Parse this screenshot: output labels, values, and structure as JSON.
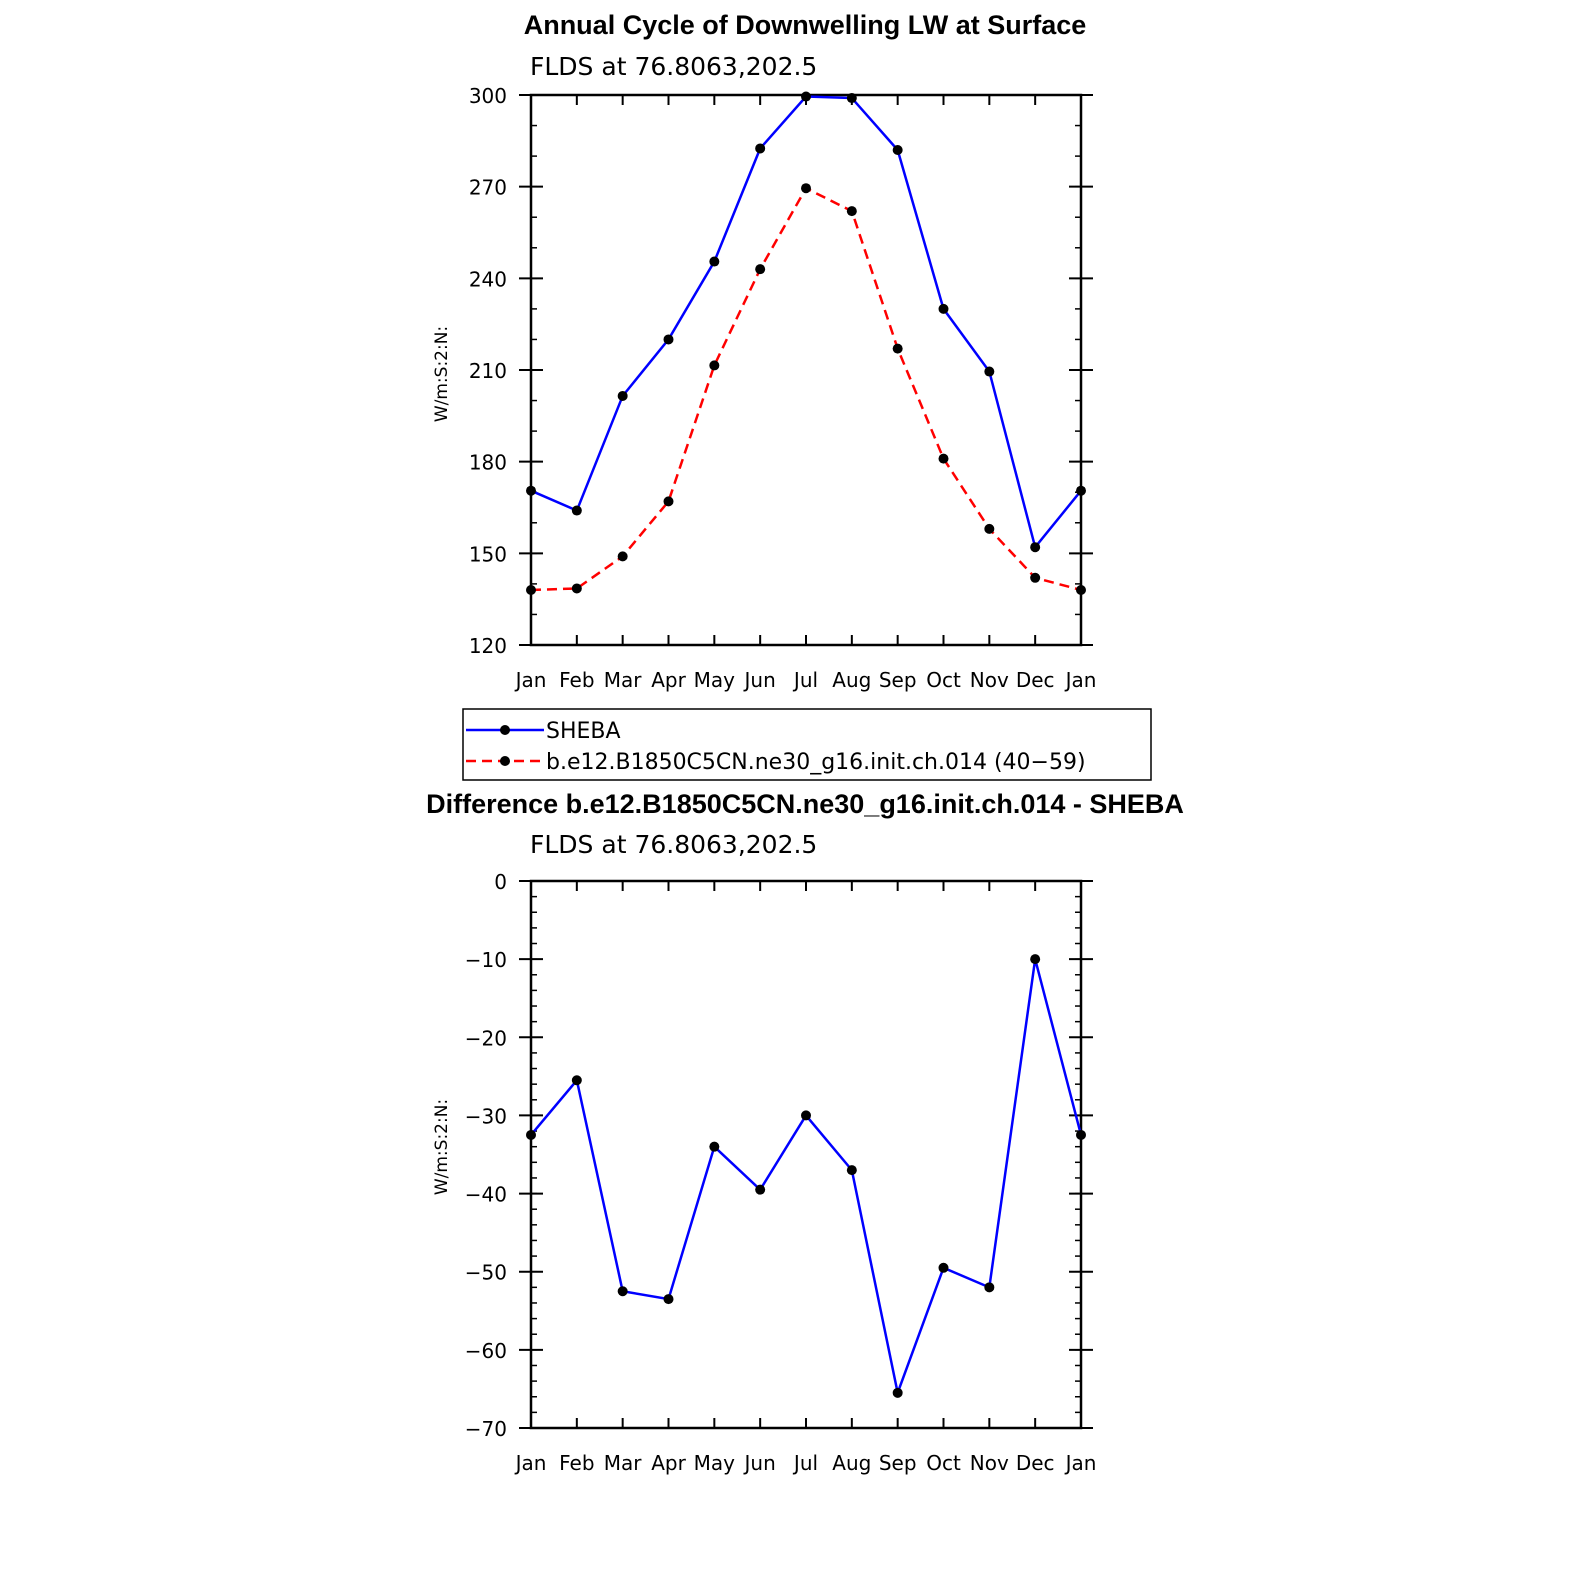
{
  "chart_data": [
    {
      "type": "line",
      "title": "Annual Cycle of Downwelling LW at Surface",
      "subtitle": "FLDS at 76.8063,202.5",
      "xlabel": "",
      "ylabel": "W/m:S:2:N:",
      "categories": [
        "Jan",
        "Feb",
        "Mar",
        "Apr",
        "May",
        "Jun",
        "Jul",
        "Aug",
        "Sep",
        "Oct",
        "Nov",
        "Dec",
        "Jan"
      ],
      "ylim": [
        120,
        300
      ],
      "yticks": [
        "120",
        "150",
        "180",
        "210",
        "240",
        "270",
        "300"
      ],
      "grid": false,
      "legend_position": "below",
      "series": [
        {
          "name": "SHEBA",
          "color": "#0000ff",
          "dash": "solid",
          "values": [
            170.5,
            164,
            201.5,
            220,
            245.5,
            282.5,
            299.5,
            299,
            282,
            230,
            209.5,
            152,
            170.5
          ]
        },
        {
          "name": "b.e12.B1850C5CN.ne30_g16.init.ch.014 (40−59)",
          "color": "#ff0000",
          "dash": "dashed",
          "values": [
            138,
            138.5,
            149,
            167,
            211.5,
            243,
            269.5,
            262,
            217,
            181,
            158,
            142,
            138
          ]
        }
      ]
    },
    {
      "type": "line",
      "title": "Difference b.e12.B1850C5CN.ne30_g16.init.ch.014 - SHEBA",
      "subtitle": "FLDS at 76.8063,202.5",
      "xlabel": "",
      "ylabel": "W/m:S:2:N:",
      "categories": [
        "Jan",
        "Feb",
        "Mar",
        "Apr",
        "May",
        "Jun",
        "Jul",
        "Aug",
        "Sep",
        "Oct",
        "Nov",
        "Dec",
        "Jan"
      ],
      "ylim": [
        -70,
        0
      ],
      "yticks": [
        "−70",
        "−60",
        "−50",
        "−40",
        "−30",
        "−20",
        "−10",
        "0"
      ],
      "grid": false,
      "series": [
        {
          "color": "#0000ff",
          "dash": "solid",
          "values": [
            -32.5,
            -25.5,
            -52.5,
            -53.5,
            -34,
            -39.5,
            -30,
            -37,
            -65.5,
            -49.5,
            -52,
            -10,
            -32.5
          ]
        }
      ]
    }
  ]
}
